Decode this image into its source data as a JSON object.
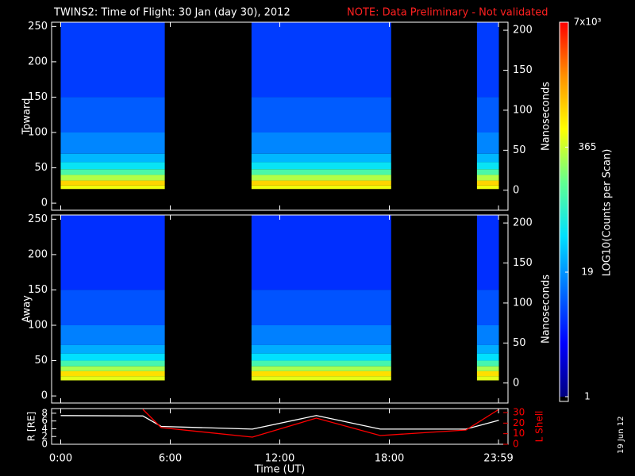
{
  "title": "TWINS2: Time of Flight: 30 Jan (day  30), 2012",
  "note": "NOTE: Data Preliminary - Not validated",
  "date_stamp": "19 Jun 12",
  "colorbar": {
    "label": "LOG10(Counts per Scan)",
    "lim": [
      1,
      7000
    ],
    "log": true,
    "ticks": [
      {
        "value": 7000,
        "label": "7x10³"
      },
      365,
      19,
      1
    ],
    "colors": [
      "#000080",
      "#0000ff",
      "#0070ff",
      "#00e0ff",
      "#60ff90",
      "#ffff00",
      "#ff9000",
      "#ff0000"
    ]
  },
  "chart_data": [
    {
      "type": "spectrogram",
      "ylabel": "Toward",
      "y2label": "Nanoseconds",
      "xlim": [
        -0.5,
        24.5
      ],
      "xticks": [
        0,
        6,
        12,
        18,
        23.98
      ],
      "ylim": [
        -10,
        256
      ],
      "yticks": [
        0,
        50,
        100,
        150,
        200,
        250
      ],
      "y2lim": [
        -25,
        210
      ],
      "y2ticks": [
        0,
        50,
        100,
        150,
        200
      ],
      "segments": [
        [
          0,
          5.7
        ],
        [
          10.45,
          18.1
        ],
        [
          22.8,
          24
        ]
      ],
      "bins": [
        20,
        25,
        32,
        40,
        48,
        58,
        70,
        100,
        150,
        256
      ],
      "counts": [
        500,
        900,
        300,
        120,
        50,
        28,
        16,
        10,
        7
      ]
    },
    {
      "type": "spectrogram",
      "ylabel": "Away",
      "y2label": "Nanoseconds",
      "xlim": [
        -0.5,
        24.5
      ],
      "xticks": [
        0,
        6,
        12,
        18,
        23.98
      ],
      "ylim": [
        -10,
        256
      ],
      "yticks": [
        0,
        50,
        100,
        150,
        200,
        250
      ],
      "y2lim": [
        -25,
        210
      ],
      "y2ticks": [
        0,
        50,
        100,
        150,
        200
      ],
      "segments": [
        [
          0,
          5.7
        ],
        [
          10.45,
          18.1
        ],
        [
          22.8,
          24
        ]
      ],
      "bins": [
        22,
        28,
        35,
        42,
        50,
        60,
        72,
        100,
        150,
        256
      ],
      "counts": [
        450,
        800,
        280,
        110,
        45,
        25,
        15,
        9,
        6
      ]
    },
    {
      "type": "line",
      "ylabel": "R [RE]",
      "y2label": "L Shell",
      "xlabel": "Time (UT)",
      "xlim": [
        -0.5,
        24.5
      ],
      "xticks": [
        {
          "value": 0,
          "label": "0:00"
        },
        {
          "value": 6,
          "label": "6:00"
        },
        {
          "value": 12,
          "label": "12:00"
        },
        {
          "value": 18,
          "label": "18:00"
        },
        {
          "value": 23.98,
          "label": "23:59"
        }
      ],
      "ylim": [
        0,
        9.2
      ],
      "yticks": [
        0,
        2,
        4,
        6,
        8
      ],
      "y2lim": [
        0,
        33.75
      ],
      "y2ticks": [
        0,
        10,
        20,
        30
      ],
      "x": [
        0,
        4.5,
        5.5,
        10.5,
        14,
        17.5,
        22.2,
        24
      ],
      "series": [
        {
          "name": "R",
          "color": "#ffffff",
          "axis": "y",
          "values": [
            7.4,
            7.3,
            4.6,
            3.9,
            7.4,
            3.9,
            3.9,
            6.2
          ]
        },
        {
          "name": "L",
          "color": "#ff0000",
          "axis": "y2",
          "values": [
            null,
            33,
            15.75,
            6.75,
            24.75,
            8.25,
            13.5,
            33
          ]
        }
      ]
    }
  ]
}
